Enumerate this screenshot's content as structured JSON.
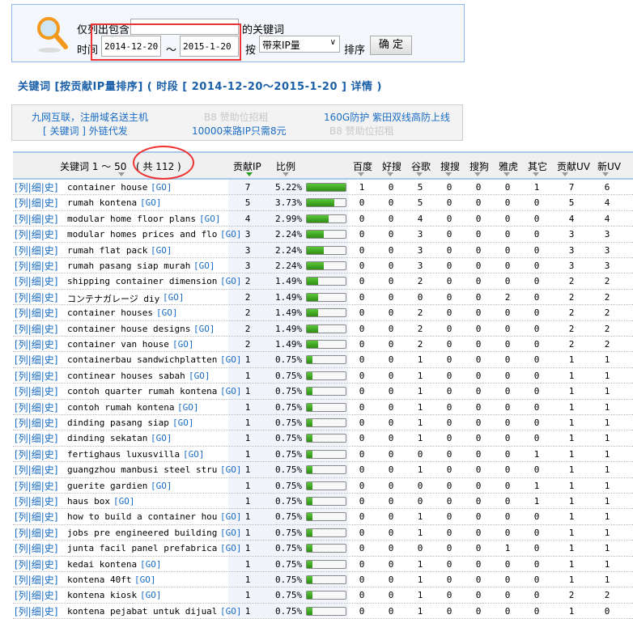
{
  "search": {
    "label_prefix": "仅列出包含",
    "keyword_value": "",
    "label_suffix": "的关键词",
    "time_label": "时间",
    "date_from": "2014-12-20",
    "tilde": "～",
    "date_to": "2015-1-20",
    "sort_by_label": "按",
    "sort_value": "带来IP量",
    "sort_suffix": "排序",
    "confirm": "确 定"
  },
  "title": "关键词 [按贡献IP量排序] ( 时段 [ 2014-12-20～2015-1-20 ] 详情 )",
  "ads": [
    "九网互联，注册域名送主机",
    "[ 关键词 ] 外链代发",
    "B8 赞助位招租",
    "10000来路IP只需8元",
    "160G防护 紫田双线高防上线",
    "B8 赞助位招租"
  ],
  "table": {
    "header_keyword": "关键词 1 ～ 50",
    "header_total": "( 共 112 )",
    "columns": [
      "贡献IP",
      "比例",
      "百度",
      "好搜",
      "谷歌",
      "搜搜",
      "搜狗",
      "雅虎",
      "其它",
      "贡献UV",
      "新UV"
    ],
    "sorted_column": "贡献IP",
    "row_links": "[列|细|史]",
    "go": "[GO]",
    "rows": [
      [
        "container house",
        7,
        "5.22%",
        1,
        0,
        5,
        0,
        0,
        0,
        1,
        7,
        6
      ],
      [
        "rumah kontena",
        5,
        "3.73%",
        0,
        0,
        5,
        0,
        0,
        0,
        0,
        5,
        4
      ],
      [
        "modular home floor plans",
        4,
        "2.99%",
        0,
        0,
        4,
        0,
        0,
        0,
        0,
        4,
        4
      ],
      [
        "modular homes prices and flo",
        3,
        "2.24%",
        0,
        0,
        3,
        0,
        0,
        0,
        0,
        3,
        3
      ],
      [
        "rumah flat pack",
        3,
        "2.24%",
        0,
        0,
        3,
        0,
        0,
        0,
        0,
        3,
        3
      ],
      [
        "rumah pasang siap murah",
        3,
        "2.24%",
        0,
        0,
        3,
        0,
        0,
        0,
        0,
        3,
        3
      ],
      [
        "shipping container dimension",
        2,
        "1.49%",
        0,
        0,
        2,
        0,
        0,
        0,
        0,
        2,
        2
      ],
      [
        "コンテナガレージ diy",
        2,
        "1.49%",
        0,
        0,
        0,
        0,
        0,
        2,
        0,
        2,
        2
      ],
      [
        "container houses",
        2,
        "1.49%",
        0,
        0,
        2,
        0,
        0,
        0,
        0,
        2,
        2
      ],
      [
        "container house designs",
        2,
        "1.49%",
        0,
        0,
        2,
        0,
        0,
        0,
        0,
        2,
        2
      ],
      [
        "container van house",
        2,
        "1.49%",
        0,
        0,
        2,
        0,
        0,
        0,
        0,
        2,
        2
      ],
      [
        "containerbau sandwichplatten",
        1,
        "0.75%",
        0,
        0,
        1,
        0,
        0,
        0,
        0,
        1,
        1
      ],
      [
        "continear houses sabah",
        1,
        "0.75%",
        0,
        0,
        1,
        0,
        0,
        0,
        0,
        1,
        1
      ],
      [
        "contoh quarter rumah kontena",
        1,
        "0.75%",
        0,
        0,
        1,
        0,
        0,
        0,
        0,
        1,
        1
      ],
      [
        "contoh rumah kontena",
        1,
        "0.75%",
        0,
        0,
        1,
        0,
        0,
        0,
        0,
        1,
        1
      ],
      [
        "dinding pasang siap",
        1,
        "0.75%",
        0,
        0,
        1,
        0,
        0,
        0,
        0,
        1,
        1
      ],
      [
        "dinding sekatan",
        1,
        "0.75%",
        0,
        0,
        1,
        0,
        0,
        0,
        0,
        1,
        1
      ],
      [
        "fertighaus luxusvilla",
        1,
        "0.75%",
        0,
        0,
        0,
        0,
        0,
        0,
        1,
        1,
        1
      ],
      [
        "guangzhou manbusi steel stru",
        1,
        "0.75%",
        0,
        0,
        1,
        0,
        0,
        0,
        0,
        1,
        1
      ],
      [
        "guerite gardien",
        1,
        "0.75%",
        0,
        0,
        0,
        0,
        0,
        0,
        1,
        1,
        1
      ],
      [
        "haus box",
        1,
        "0.75%",
        0,
        0,
        0,
        0,
        0,
        0,
        1,
        1,
        1
      ],
      [
        "how to build a container hou",
        1,
        "0.75%",
        0,
        0,
        1,
        0,
        0,
        0,
        0,
        1,
        1
      ],
      [
        "jobs pre engineered building",
        1,
        "0.75%",
        0,
        0,
        1,
        0,
        0,
        0,
        0,
        1,
        1
      ],
      [
        "junta facil panel prefabrica",
        1,
        "0.75%",
        0,
        0,
        0,
        0,
        0,
        1,
        0,
        1,
        1
      ],
      [
        "kedai kontena",
        1,
        "0.75%",
        0,
        0,
        1,
        0,
        0,
        0,
        0,
        1,
        1
      ],
      [
        "kontena 40ft",
        1,
        "0.75%",
        0,
        0,
        1,
        0,
        0,
        0,
        0,
        1,
        1
      ],
      [
        "kontena kiosk",
        1,
        "0.75%",
        0,
        0,
        1,
        0,
        0,
        0,
        0,
        2,
        2
      ],
      [
        "kontena pejabat untuk dijual",
        1,
        "0.75%",
        0,
        0,
        1,
        0,
        0,
        0,
        0,
        1,
        0
      ]
    ]
  },
  "colors": {
    "link": "#1a6cc4",
    "bar": "#3aa01e",
    "annotation": "#e33333"
  }
}
